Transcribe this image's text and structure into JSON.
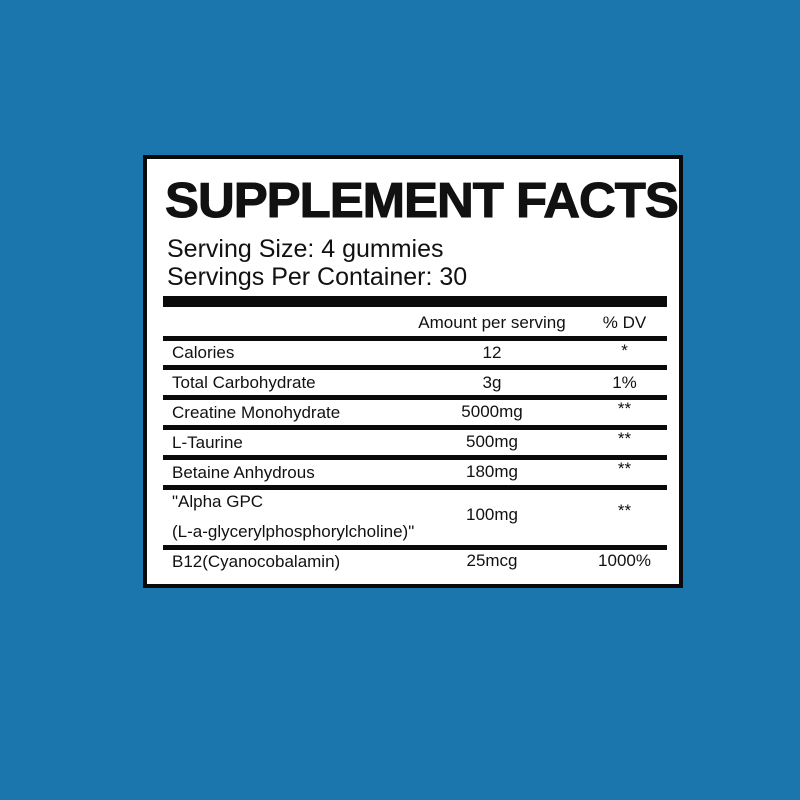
{
  "title": "SUPPLEMENT FACTS",
  "serving_size": "Serving Size: 4 gummies",
  "servings_per_container": "Servings Per Container: 30",
  "columns": {
    "amount": "Amount per serving",
    "dv": "% DV"
  },
  "rows": [
    {
      "name": "Calories",
      "amount": "12",
      "dv": "*"
    },
    {
      "name": "Total Carbohydrate",
      "amount": "3g",
      "dv": "1%"
    },
    {
      "name": "Creatine  Monohydrate",
      "amount": "5000mg",
      "dv": "**"
    },
    {
      "name": "L-Taurine",
      "amount": "500mg",
      "dv": "**"
    },
    {
      "name": "Betaine Anhydrous",
      "amount": "180mg",
      "dv": "**"
    },
    {
      "name": "\"Alpha GPC",
      "name2": "(L-a-glycerylphosphorylcholine)\"",
      "amount": "100mg",
      "dv": "**"
    },
    {
      "name": "B12(Cyanocobalamin)",
      "amount": "25mcg",
      "dv": "1000%"
    }
  ],
  "colors": {
    "background": "#1c76ae",
    "panel": "#ffffff",
    "ink": "#0a0a0a"
  }
}
